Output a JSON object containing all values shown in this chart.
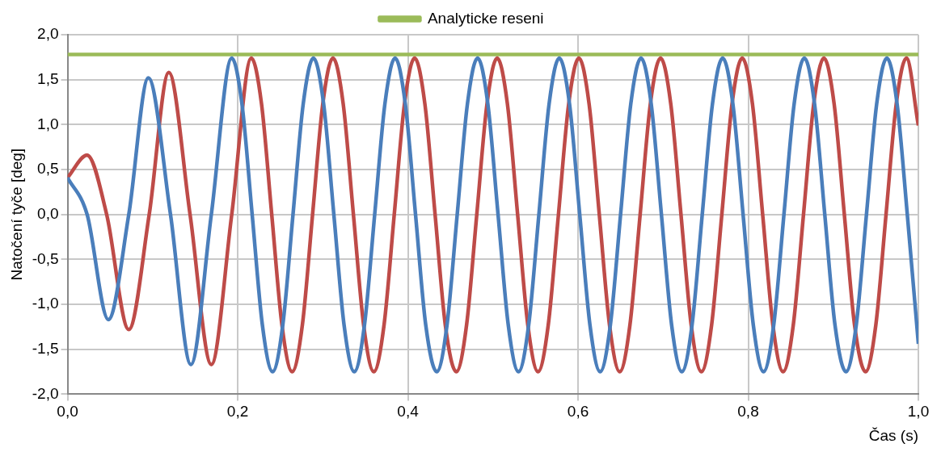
{
  "chart_data": {
    "type": "line",
    "xlabel": "Čas (s)",
    "ylabel": "Natočení tyče [deg]",
    "legend": "top",
    "grid": true,
    "marker": "none",
    "line_style": "solid",
    "xlim": [
      0,
      1
    ],
    "xticks": [
      {
        "value": 0,
        "label": "0,0"
      },
      {
        "value": 0.2,
        "label": "0,2"
      },
      {
        "value": 0.4,
        "label": "0,4"
      },
      {
        "value": 0.6,
        "label": "0,6"
      },
      {
        "value": 0.8,
        "label": "0,8"
      },
      {
        "value": 1,
        "label": "1,0"
      }
    ],
    "ylim": [
      -2,
      2
    ],
    "yticks": [
      {
        "value": -2,
        "label": "-2,0"
      },
      {
        "value": -1.5,
        "label": "-1,5"
      },
      {
        "value": -1,
        "label": "-1,0"
      },
      {
        "value": -0.5,
        "label": "-0,5"
      },
      {
        "value": 0,
        "label": "0,0"
      },
      {
        "value": 0.5,
        "label": "0,5"
      },
      {
        "value": 1,
        "label": "1,0"
      },
      {
        "value": 1.5,
        "label": "1,5"
      },
      {
        "value": 2,
        "label": "2,0"
      }
    ],
    "series": [
      {
        "color": "#4a7ebb",
        "x": [
          0,
          0.023,
          0.048,
          0.072,
          0.095,
          0.121,
          0.145,
          0.169,
          0.193,
          0.205,
          0.217,
          0.229,
          0.241,
          0.253,
          0.265,
          0.277,
          0.289,
          0.301,
          0.313,
          0.325,
          0.337,
          0.349,
          0.361,
          0.373,
          0.385,
          0.397,
          0.409,
          0.421,
          0.434,
          0.446,
          0.458,
          0.47,
          0.482,
          0.494,
          0.506,
          0.518,
          0.53,
          0.542,
          0.554,
          0.566,
          0.578,
          0.59,
          0.602,
          0.614,
          0.626,
          0.638,
          0.65,
          0.662,
          0.674,
          0.686,
          0.698,
          0.71,
          0.722,
          0.734,
          0.746,
          0.758,
          0.77,
          0.782,
          0.794,
          0.806,
          0.818,
          0.83,
          0.842,
          0.854,
          0.866,
          0.878,
          0.89,
          0.902,
          0.915,
          0.927,
          0.939,
          0.951,
          0.963,
          0.975,
          0.987,
          1.0
        ],
        "values": [
          0.41,
          0,
          -1.17,
          0,
          1.52,
          0,
          -1.67,
          0,
          1.74,
          1.23,
          0,
          -1.23,
          -1.75,
          -1.23,
          0,
          1.23,
          1.74,
          1.23,
          0,
          -1.23,
          -1.75,
          -1.23,
          0,
          1.23,
          1.74,
          1.23,
          0,
          -1.23,
          -1.75,
          -1.23,
          0,
          1.23,
          1.74,
          1.23,
          0,
          -1.23,
          -1.75,
          -1.23,
          0,
          1.23,
          1.74,
          1.23,
          0,
          -1.23,
          -1.75,
          -1.23,
          0,
          1.23,
          1.74,
          1.23,
          0,
          -1.23,
          -1.75,
          -1.23,
          0,
          1.23,
          1.74,
          1.23,
          0,
          -1.23,
          -1.75,
          -1.23,
          0,
          1.23,
          1.74,
          1.23,
          0,
          -1.23,
          -1.75,
          -1.23,
          0,
          1.23,
          1.74,
          1.23,
          0,
          -1.44
        ]
      },
      {
        "color": "#be4b48",
        "x": [
          0,
          0.023,
          0.046,
          0.072,
          0.096,
          0.119,
          0.144,
          0.169,
          0.193,
          0.216,
          0.228,
          0.24,
          0.252,
          0.264,
          0.276,
          0.288,
          0.3,
          0.312,
          0.324,
          0.336,
          0.348,
          0.36,
          0.372,
          0.384,
          0.396,
          0.408,
          0.42,
          0.432,
          0.444,
          0.457,
          0.469,
          0.481,
          0.493,
          0.505,
          0.517,
          0.529,
          0.541,
          0.553,
          0.565,
          0.577,
          0.589,
          0.601,
          0.613,
          0.625,
          0.637,
          0.649,
          0.661,
          0.673,
          0.685,
          0.697,
          0.709,
          0.721,
          0.733,
          0.745,
          0.757,
          0.769,
          0.781,
          0.793,
          0.805,
          0.817,
          0.829,
          0.841,
          0.853,
          0.865,
          0.877,
          0.889,
          0.901,
          0.913,
          0.925,
          0.938,
          0.95,
          0.962,
          0.974,
          0.986,
          1.0
        ],
        "values": [
          0.41,
          0.66,
          0,
          -1.28,
          0,
          1.58,
          0,
          -1.67,
          0,
          1.74,
          1.23,
          0,
          -1.23,
          -1.75,
          -1.23,
          0,
          1.23,
          1.74,
          1.23,
          0,
          -1.23,
          -1.75,
          -1.23,
          0,
          1.23,
          1.74,
          1.23,
          0,
          -1.23,
          -1.75,
          -1.23,
          0,
          1.23,
          1.74,
          1.23,
          0,
          -1.23,
          -1.75,
          -1.23,
          0,
          1.23,
          1.74,
          1.23,
          0,
          -1.23,
          -1.75,
          -1.23,
          0,
          1.23,
          1.74,
          1.23,
          0,
          -1.23,
          -1.75,
          -1.23,
          0,
          1.23,
          1.74,
          1.23,
          0,
          -1.23,
          -1.75,
          -1.23,
          0,
          1.23,
          1.74,
          1.23,
          0,
          -1.23,
          -1.75,
          -1.23,
          0,
          1.23,
          1.74,
          0.99
        ]
      },
      {
        "name": "Analyticke reseni",
        "color": "#9bbb59",
        "x": [
          0,
          1
        ],
        "values": [
          1.78,
          1.78
        ]
      }
    ]
  }
}
